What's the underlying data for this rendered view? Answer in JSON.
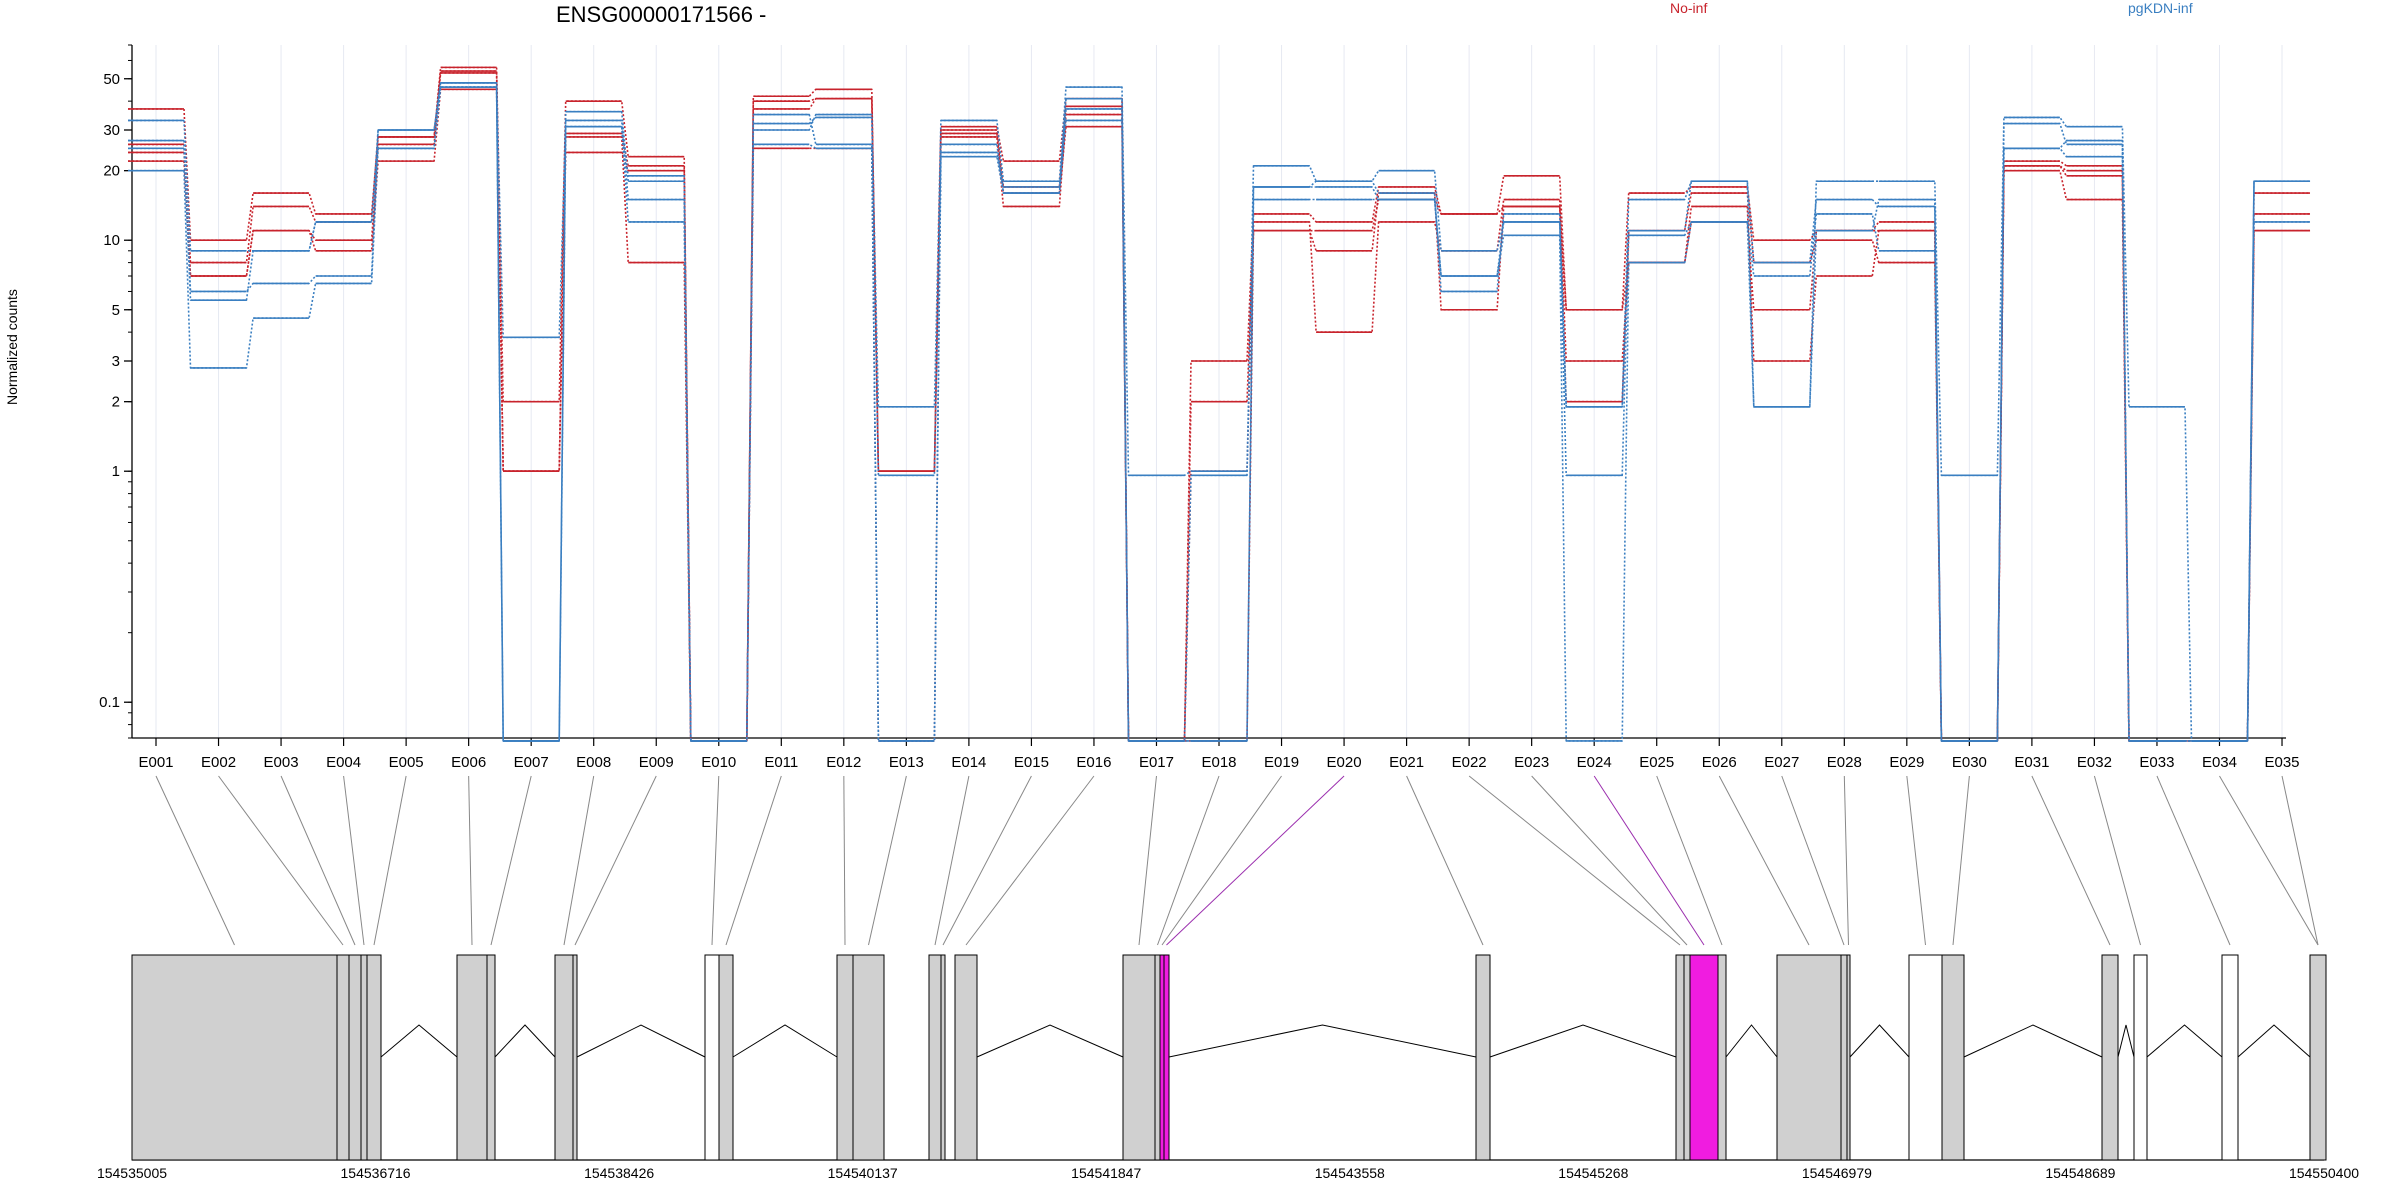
{
  "chart_data": {
    "type": "line",
    "title": "ENSG00000171566 -",
    "ylabel": "Normalized counts",
    "yscale": "log",
    "ylim": [
      0.07,
      70
    ],
    "yticks": [
      0.1,
      1,
      2,
      3,
      5,
      10,
      20,
      30,
      50
    ],
    "ytick_labels": [
      "0.1",
      "1",
      "2",
      "3",
      "5",
      "10",
      "20",
      "30",
      "50"
    ],
    "categories": [
      "E001",
      "E002",
      "E003",
      "E004",
      "E005",
      "E006",
      "E007",
      "E008",
      "E009",
      "E010",
      "E011",
      "E012",
      "E013",
      "E014",
      "E015",
      "E016",
      "E017",
      "E018",
      "E019",
      "E020",
      "E021",
      "E022",
      "E023",
      "E024",
      "E025",
      "E026",
      "E027",
      "E028",
      "E029",
      "E030",
      "E031",
      "E032",
      "E033",
      "E034",
      "E035"
    ],
    "legend": [
      "No-inf",
      "pgKDN-inf"
    ],
    "legend_placement": "top",
    "grid": true,
    "series": [
      {
        "group": "No-inf",
        "color": "#c8232c",
        "values": [
          37,
          10,
          16,
          13,
          28,
          56,
          2,
          40,
          23,
          0.068,
          42,
          45,
          1,
          31,
          22,
          41,
          0.068,
          3,
          13,
          12,
          17,
          13,
          19,
          5,
          16,
          17,
          10,
          11,
          12,
          0.068,
          22,
          21,
          0.068,
          0.068,
          16
        ]
      },
      {
        "group": "No-inf",
        "color": "#c8232c",
        "values": [
          26,
          8,
          14,
          12,
          28,
          54,
          1,
          29,
          21,
          0.068,
          40,
          41,
          1,
          30,
          17,
          38,
          0.068,
          1,
          11,
          9,
          16,
          5,
          14,
          2,
          11,
          16,
          8,
          10,
          8,
          0.068,
          21,
          20,
          0.068,
          0.068,
          11
        ]
      },
      {
        "group": "No-inf",
        "color": "#c8232c",
        "values": [
          24,
          7,
          11,
          9,
          22,
          45,
          1,
          24,
          20,
          0.068,
          25,
          25,
          0.068,
          28,
          14,
          35,
          0.068,
          0.068,
          12,
          4,
          12,
          9,
          15,
          3,
          8,
          14,
          3,
          7,
          11,
          0.068,
          20,
          15,
          0.068,
          0.068,
          13
        ]
      },
      {
        "group": "No-inf",
        "color": "#c8232c",
        "values": [
          22,
          7,
          11,
          10,
          26,
          53,
          1,
          28,
          8,
          0.068,
          37,
          41,
          1,
          29,
          16,
          31,
          0.068,
          2,
          11,
          11,
          15,
          13,
          14,
          5,
          8,
          12,
          5,
          11,
          11,
          0.068,
          21,
          19,
          0.068,
          0.068,
          11
        ]
      },
      {
        "group": "pgKDN-inf",
        "color": "#3a7fc1",
        "values": [
          33,
          9,
          9,
          12,
          30,
          48,
          3.8,
          33,
          15,
          0.068,
          32,
          34,
          1.9,
          33,
          18,
          46,
          0.96,
          1,
          21,
          18,
          20,
          9,
          12,
          1.9,
          15,
          18,
          1.9,
          18,
          18,
          0.96,
          34,
          31,
          1.9,
          0.068,
          18
        ]
      },
      {
        "group": "pgKDN-inf",
        "color": "#3a7fc1",
        "values": [
          27,
          6,
          6.5,
          7,
          30,
          48,
          0.068,
          36,
          18,
          0.068,
          30,
          35,
          0.96,
          24,
          17,
          37,
          0.068,
          0.96,
          17,
          18,
          16,
          6,
          13,
          1.9,
          11,
          18,
          8,
          15,
          14,
          0.068,
          32,
          26,
          0.068,
          0.068,
          18
        ]
      },
      {
        "group": "pgKDN-inf",
        "color": "#3a7fc1",
        "values": [
          20,
          2.8,
          4.6,
          6.5,
          25,
          46,
          0.068,
          31,
          12,
          0.068,
          26,
          25,
          0.068,
          23,
          16,
          41,
          0.068,
          0.068,
          15,
          15,
          15,
          7,
          10.5,
          0.068,
          8,
          12,
          7,
          13,
          9,
          0.068,
          25,
          23,
          0.068,
          0.068,
          12
        ]
      },
      {
        "group": "pgKDN-inf",
        "color": "#3a7fc1",
        "values": [
          25,
          5.5,
          9,
          12,
          25,
          46,
          0.068,
          31,
          19,
          0.068,
          35,
          26,
          0.068,
          26,
          16,
          33,
          0.068,
          0.068,
          17,
          17,
          15,
          7,
          12,
          0.96,
          10.5,
          12,
          1.9,
          11,
          15,
          0.068,
          25,
          27,
          0.068,
          0.068,
          18
        ]
      }
    ],
    "gene_model": {
      "coordinate_labels": [
        "154535005",
        "154536716",
        "154538426",
        "154540137",
        "154541847",
        "154543558",
        "154545268",
        "154546979",
        "154548689",
        "154550400"
      ],
      "highlighted_exons": [
        "E020",
        "E024"
      ],
      "highlight_color": "#f01ce0"
    }
  }
}
